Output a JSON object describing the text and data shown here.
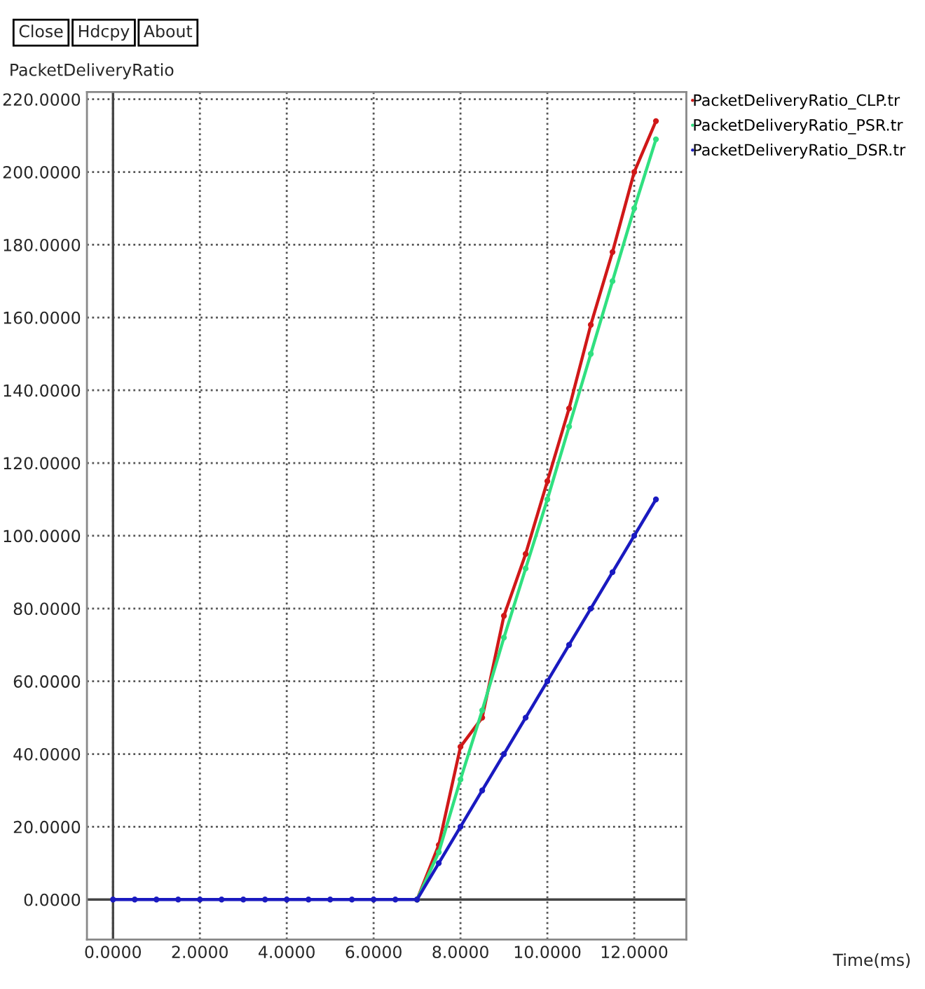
{
  "chart_data": {
    "type": "line",
    "ylabel": "PacketDeliveryRatio",
    "annotations": [
      "Close",
      "Hdcpy",
      "About",
      "Time(ms)"
    ],
    "x": [
      0,
      0.5,
      1,
      1.5,
      2,
      2.5,
      3,
      3.5,
      4,
      4.5,
      5,
      5.5,
      6,
      6.5,
      7,
      7.5,
      8,
      8.5,
      9,
      9.5,
      10,
      10.5,
      11,
      11.5,
      12,
      12.5
    ],
    "series": [
      {
        "name": "PacketDeliveryRatio_CLP.tr",
        "color": "#d01818",
        "values": [
          null,
          null,
          null,
          null,
          null,
          null,
          null,
          null,
          null,
          null,
          null,
          null,
          null,
          null,
          0,
          15,
          42,
          50,
          78,
          95,
          115,
          135,
          158,
          178,
          200,
          214
        ]
      },
      {
        "name": "PacketDeliveryRatio_PSR.tr",
        "color": "#30e080",
        "values": [
          null,
          null,
          null,
          null,
          null,
          null,
          null,
          null,
          null,
          null,
          null,
          null,
          null,
          null,
          0,
          13,
          33,
          52,
          72,
          91,
          110,
          130,
          150,
          170,
          190,
          209
        ]
      },
      {
        "name": "PacketDeliveryRatio_DSR.tr",
        "color": "#1a1ac0",
        "values": [
          0,
          0,
          0,
          0,
          0,
          0,
          0,
          0,
          0,
          0,
          0,
          0,
          0,
          0,
          0,
          10,
          20,
          30,
          40,
          50,
          60,
          70,
          80,
          90,
          100,
          110
        ]
      }
    ],
    "xlim": [
      -0.6,
      13.2
    ],
    "ylim": [
      -11,
      222
    ],
    "xticks": [
      {
        "value": 0,
        "label": "0.0000"
      },
      {
        "value": 2,
        "label": "2.0000"
      },
      {
        "value": 4,
        "label": "4.0000"
      },
      {
        "value": 6,
        "label": "6.0000"
      },
      {
        "value": 8,
        "label": "8.0000"
      },
      {
        "value": 10,
        "label": "10.0000"
      },
      {
        "value": 12,
        "label": "12.0000"
      }
    ],
    "yticks": [
      {
        "value": 0,
        "label": "0.0000"
      },
      {
        "value": 20,
        "label": "20.0000"
      },
      {
        "value": 40,
        "label": "40.0000"
      },
      {
        "value": 60,
        "label": "60.0000"
      },
      {
        "value": 80,
        "label": "80.0000"
      },
      {
        "value": 100,
        "label": "100.0000"
      },
      {
        "value": 120,
        "label": "120.0000"
      },
      {
        "value": 140,
        "label": "140.0000"
      },
      {
        "value": 160,
        "label": "160.0000"
      },
      {
        "value": 180,
        "label": "180.0000"
      },
      {
        "value": 200,
        "label": "200.0000"
      },
      {
        "value": 220,
        "label": "220.0000"
      }
    ],
    "grid": true,
    "legend": "top right",
    "marker": "circle",
    "line_style": "solid"
  }
}
